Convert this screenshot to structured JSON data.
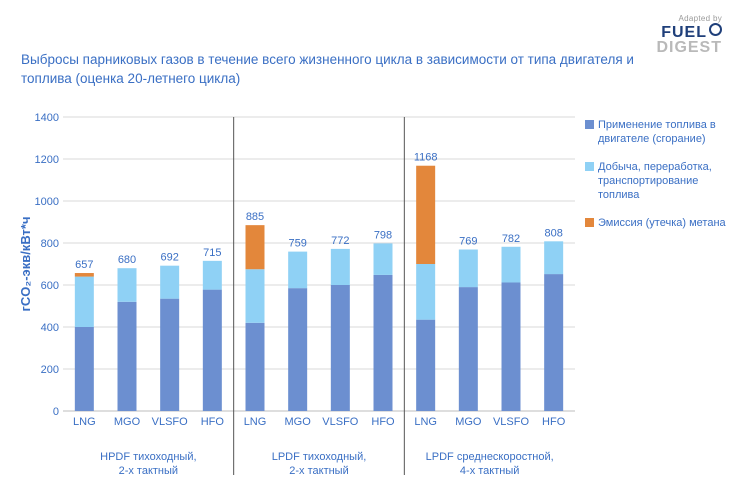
{
  "title": "Выбросы парниковых газов в течение всего жизненного цикла в зависимости от типа двигателя и топлива (оценка 20-летнего цикла)",
  "logo": {
    "adapted_by": "Adapted by",
    "word1": "FUEL",
    "word2": "DIGEST"
  },
  "colors": {
    "combustion": "#6c8fd0",
    "wtt": "#8fd1f5",
    "methane": "#e3873b",
    "axis_text": "#3a6fc4",
    "divider": "#555555"
  },
  "chart_data": {
    "type": "bar",
    "stacked": true,
    "ylabel": "гCO₂-экв/кВт*ч",
    "ylim": [
      0,
      1400
    ],
    "yticks": [
      0,
      200,
      400,
      600,
      800,
      1000,
      1200,
      1400
    ],
    "grid": true,
    "legend_position": "right",
    "groups": [
      {
        "label_line1": "HPDF тихоходный,",
        "label_line2": "2-х тактный",
        "categories": [
          "LNG",
          "MGO",
          "VLSFO",
          "HFO"
        ],
        "combustion": [
          400,
          520,
          535,
          578
        ],
        "wtt": [
          240,
          160,
          157,
          137
        ],
        "methane": [
          17,
          0,
          0,
          0
        ],
        "totals": [
          "657",
          "680",
          "692",
          "715"
        ]
      },
      {
        "label_line1": "LPDF тихоходный,",
        "label_line2": "2-х тактный",
        "categories": [
          "LNG",
          "MGO",
          "VLSFO",
          "HFO"
        ],
        "combustion": [
          420,
          585,
          600,
          648
        ],
        "wtt": [
          255,
          174,
          172,
          150
        ],
        "methane": [
          210,
          0,
          0,
          0
        ],
        "totals": [
          "885",
          "759",
          "772",
          "798"
        ]
      },
      {
        "label_line1": "LPDF среднескоростной,",
        "label_line2": "4-х тактный",
        "categories": [
          "LNG",
          "MGO",
          "VLSFO",
          "HFO"
        ],
        "combustion": [
          435,
          590,
          612,
          652
        ],
        "wtt": [
          265,
          179,
          170,
          156
        ],
        "methane": [
          468,
          0,
          0,
          0
        ],
        "totals": [
          "1168",
          "769",
          "782",
          "808"
        ]
      }
    ],
    "series": [
      {
        "key": "combustion",
        "name": "Применение топлива в двигателе (сгорание)"
      },
      {
        "key": "wtt",
        "name": "Добыча, переработка, транспортирование топлива"
      },
      {
        "key": "methane",
        "name": "Эмиссия (утечка) метана"
      }
    ]
  }
}
